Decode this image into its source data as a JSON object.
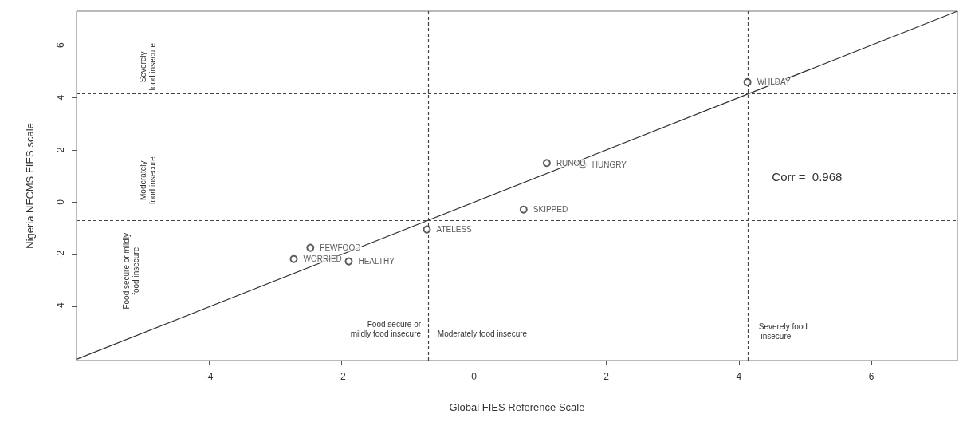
{
  "chart_data": {
    "type": "scatter",
    "xlabel": "Global FIES Reference Scale",
    "ylabel": "Nigeria NFCMS FIES scale",
    "xlim": [
      -6,
      7.3
    ],
    "ylim": [
      -6.05,
      7.3
    ],
    "xticks": [
      -4,
      -2,
      0,
      2,
      4,
      6
    ],
    "yticks": [
      -4,
      -2,
      0,
      2,
      4,
      6
    ],
    "grid": false,
    "marker": "circle",
    "series": [
      {
        "type": "scatter",
        "color": "#333333",
        "x": [
          -2.47,
          -2.72,
          -1.89,
          -0.71,
          0.75,
          1.1,
          1.64,
          4.13
        ],
        "values": [
          -1.74,
          -2.17,
          -2.26,
          -1.04,
          -0.28,
          1.5,
          1.44,
          4.59
        ],
        "value_labels": [
          "FEWFOOD",
          "WORRIED",
          "HEALTHY",
          "ATELESS",
          "SKIPPED",
          "RUNOUT",
          "HUNGRY",
          "WHLDAY"
        ]
      },
      {
        "type": "line",
        "color": "#333333",
        "x": [
          -6,
          7.3
        ],
        "values": [
          -6,
          7.3
        ],
        "marker": "none",
        "line_style": "solid"
      }
    ],
    "ref_lines": [
      {
        "axis": "x",
        "value": -0.69,
        "color": "#444444",
        "line_style": "dashed"
      },
      {
        "axis": "x",
        "value": 4.14,
        "color": "#444444",
        "line_style": "dashed"
      },
      {
        "axis": "y",
        "value": 4.15,
        "color": "#444444",
        "line_style": "dashed"
      },
      {
        "axis": "y",
        "value": -0.7,
        "color": "#444444",
        "line_style": "dashed"
      }
    ],
    "annotations": [
      "Severely\nfood insecure",
      "Moderately\nfood insecure",
      "Food secure or mildly\nfood insecure",
      "Food secure or\nmildly food insecure",
      "Moderately food insecure",
      "Severely food\n insecure",
      "Corr =  0.968"
    ]
  }
}
